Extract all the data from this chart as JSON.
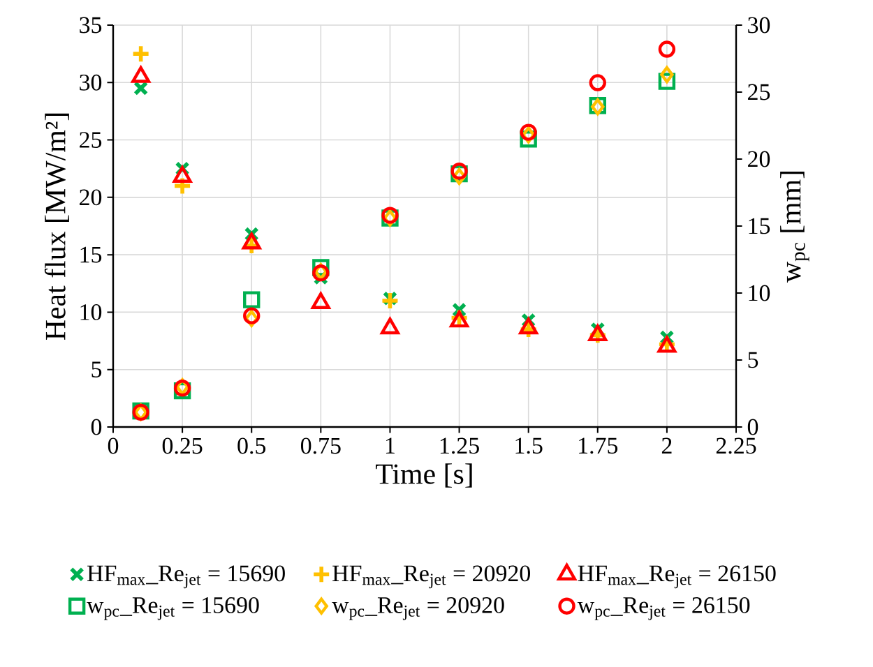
{
  "chart_data": {
    "type": "scatter",
    "xlabel": "Time [s]",
    "ylabel": "Heat flux [MW/m²]",
    "y2label": "w$_{pc}$ [mm]",
    "x": [
      0.1,
      0.25,
      0.5,
      0.75,
      1,
      1.25,
      1.5,
      1.75,
      2
    ],
    "series": [
      {
        "name": "HF$_{max}$_Re$_{jet}$ = 15690",
        "color": "#00b050",
        "marker": "cross",
        "values": [
          29.5,
          22.5,
          16.8,
          13,
          11.2,
          10.2,
          9.3,
          8.5,
          7.8
        ]
      },
      {
        "name": "HF$_{max}$_Re$_{jet}$ = 20920",
        "color": "#ffc000",
        "marker": "plus",
        "values": [
          32.5,
          21,
          15.8,
          null,
          11,
          9.5,
          8.5,
          8,
          7.2
        ]
      },
      {
        "name": "HF$_{max}$_Re$_{jet}$ = 26150",
        "color": "#ff0000",
        "marker": "triangle",
        "values": [
          30.5,
          21.8,
          16,
          10.8,
          8.6,
          9.2,
          8.6,
          8,
          7
        ]
      },
      {
        "name": "w$_{pc}$_Re$_{jet}$ = 15690",
        "color": "#00b050",
        "marker": "square",
        "axis": "y2",
        "values": [
          1.2,
          2.7,
          9.5,
          11.9,
          15.6,
          18.9,
          21.5,
          24,
          25.8
        ]
      },
      {
        "name": "w$_{pc}$_Re$_{jet}$ = 20920",
        "color": "#ffc000",
        "marker": "diamond",
        "axis": "y2",
        "values": [
          1.1,
          3,
          8.1,
          11.6,
          15.6,
          18.7,
          21.8,
          23.9,
          26.3
        ]
      },
      {
        "name": "w$_{pc}$_Re$_{jet}$ = 26150",
        "color": "#ff0000",
        "marker": "circle",
        "axis": "y2",
        "values": [
          1.1,
          2.9,
          8.3,
          11.5,
          15.8,
          19.1,
          22,
          25.7,
          28.2
        ]
      }
    ],
    "xlim": [
      0,
      2.25
    ],
    "xticks": [
      0,
      0.25,
      0.5,
      0.75,
      1,
      1.25,
      1.5,
      1.75,
      2,
      2.25
    ],
    "ylim": [
      0,
      35
    ],
    "yticks": [
      0,
      5,
      10,
      15,
      20,
      25,
      30,
      35
    ],
    "y2lim": [
      0,
      30
    ],
    "y2ticks": [
      0,
      5,
      10,
      15,
      20,
      25,
      30
    ],
    "grid": true,
    "legend": "bottom"
  }
}
